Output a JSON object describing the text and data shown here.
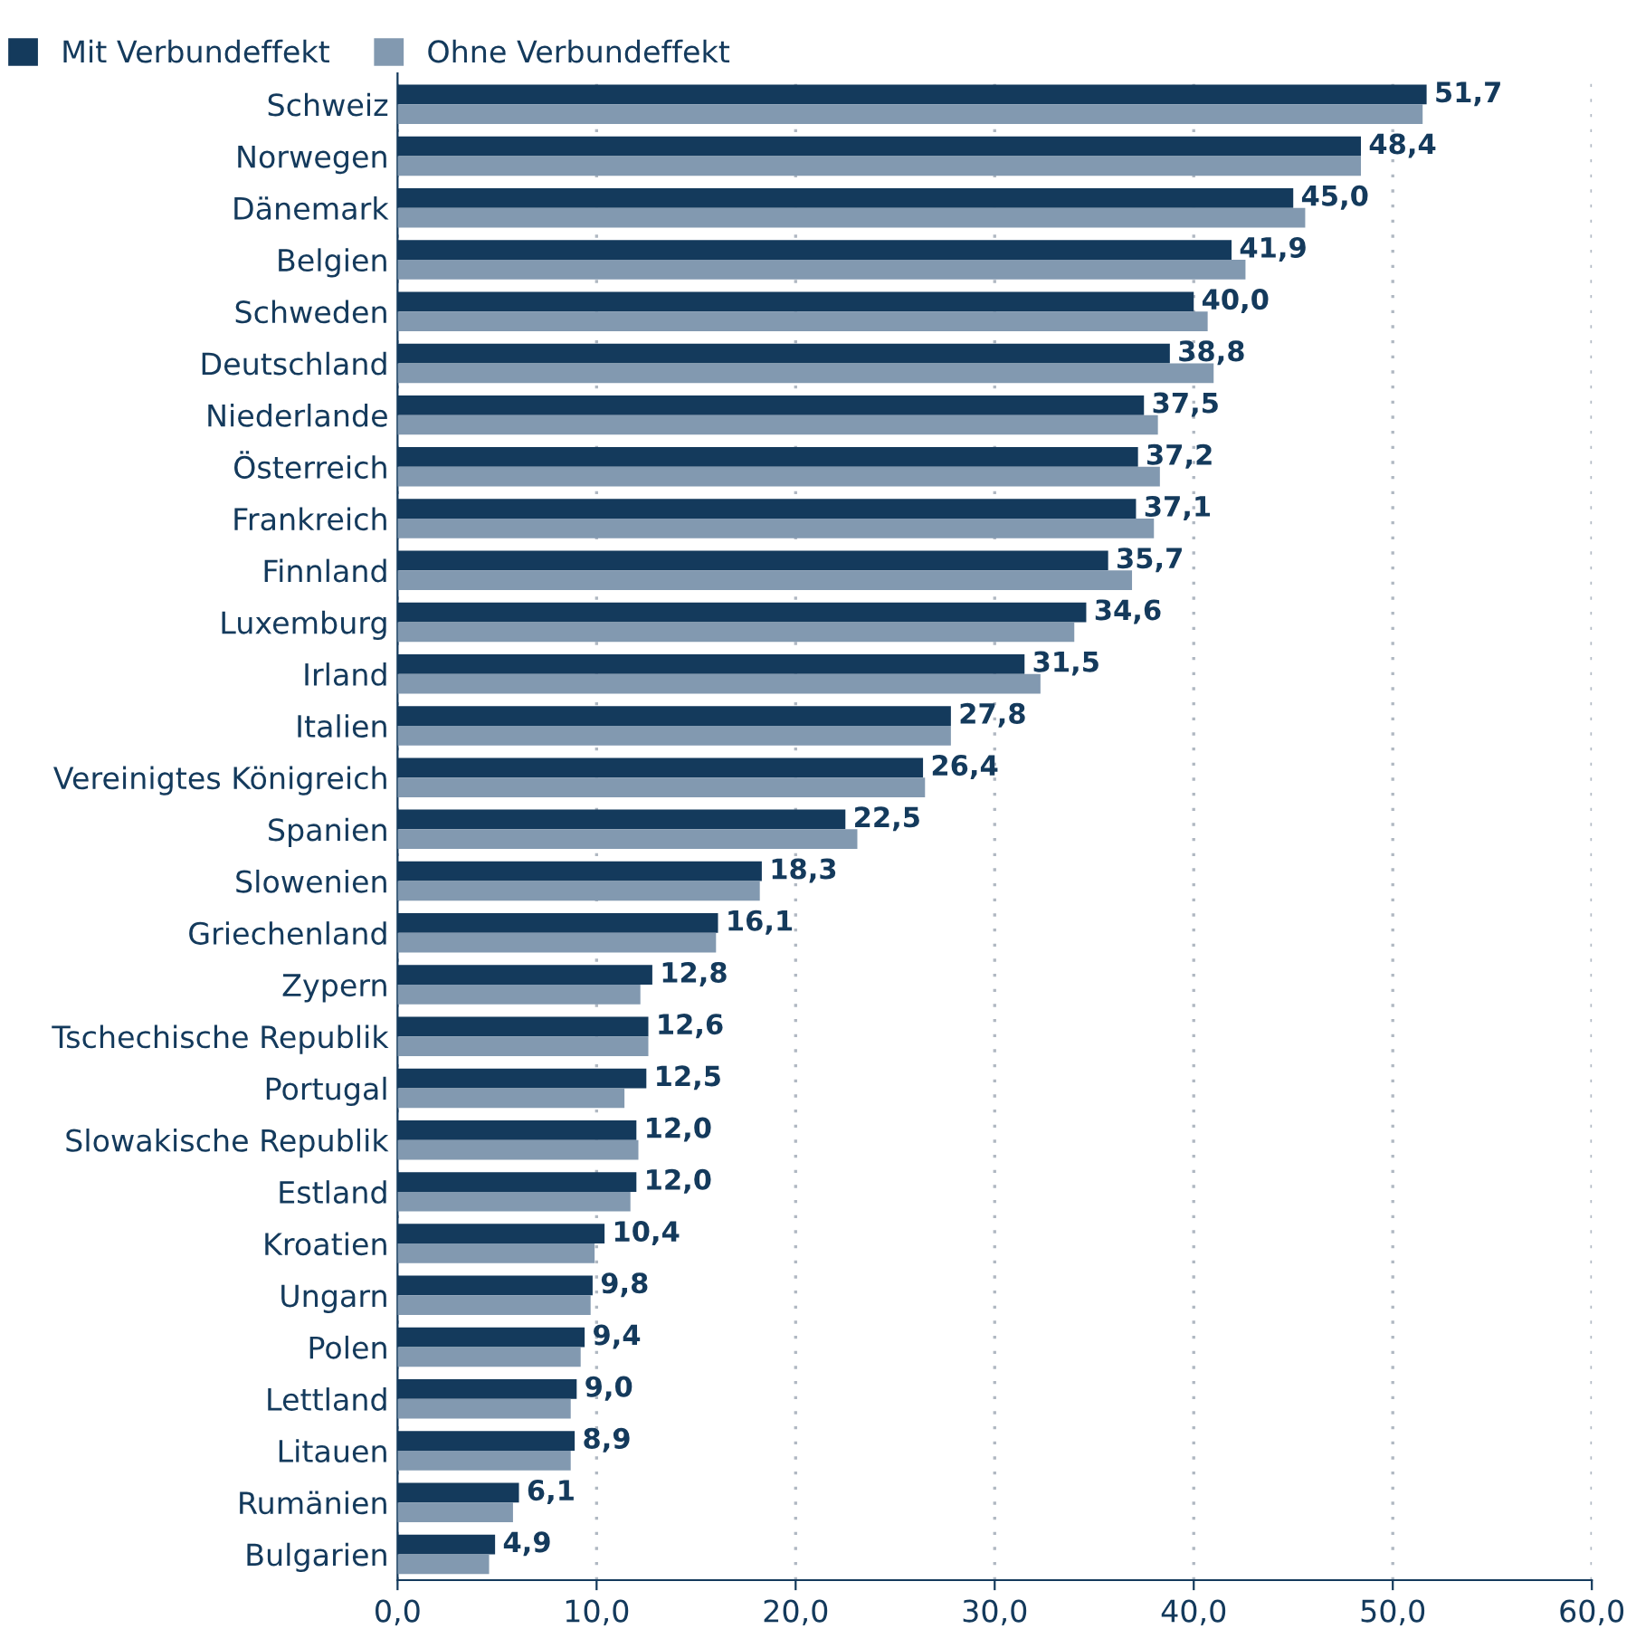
{
  "chart_data": {
    "type": "bar",
    "orientation": "horizontal",
    "categories": [
      "Schweiz",
      "Norwegen",
      "Dänemark",
      "Belgien",
      "Schweden",
      "Deutschland",
      "Niederlande",
      "Österreich",
      "Frankreich",
      "Finnland",
      "Luxemburg",
      "Irland",
      "Italien",
      "Vereinigtes Königreich",
      "Spanien",
      "Slowenien",
      "Griechenland",
      "Zypern",
      "Tschechische Republik",
      "Portugal",
      "Slowakische Republik",
      "Estland",
      "Kroatien",
      "Ungarn",
      "Polen",
      "Lettland",
      "Litauen",
      "Rumänien",
      "Bulgarien"
    ],
    "series": [
      {
        "name": "Mit Verbundeffekt",
        "color": "#143a5c",
        "values": [
          51.7,
          48.4,
          45.0,
          41.9,
          40.0,
          38.8,
          37.5,
          37.2,
          37.1,
          35.7,
          34.6,
          31.5,
          27.8,
          26.4,
          22.5,
          18.3,
          16.1,
          12.8,
          12.6,
          12.5,
          12.0,
          12.0,
          10.4,
          9.8,
          9.4,
          9.0,
          8.9,
          6.1,
          4.9
        ],
        "value_labels": [
          "51,7",
          "48,4",
          "45,0",
          "41,9",
          "40,0",
          "38,8",
          "37,5",
          "37,2",
          "37,1",
          "35,7",
          "34,6",
          "31,5",
          "27,8",
          "26,4",
          "22,5",
          "18,3",
          "16,1",
          "12,8",
          "12,6",
          "12,5",
          "12,0",
          "12,0",
          "10,4",
          "9,8",
          "9,4",
          "9,0",
          "8,9",
          "6,1",
          "4,9"
        ]
      },
      {
        "name": "Ohne Verbundeffekt",
        "color": "#8299b0",
        "values": [
          51.5,
          48.4,
          45.6,
          42.6,
          40.7,
          41.0,
          38.2,
          38.3,
          38.0,
          36.9,
          34.0,
          32.3,
          27.8,
          26.5,
          23.1,
          18.2,
          16.0,
          12.2,
          12.6,
          11.4,
          12.1,
          11.7,
          9.9,
          9.7,
          9.2,
          8.7,
          8.7,
          5.8,
          4.6
        ]
      }
    ],
    "xlim": [
      0,
      60
    ],
    "xticks": [
      {
        "value": 0,
        "label": "0,0"
      },
      {
        "value": 10,
        "label": "10,0"
      },
      {
        "value": 20,
        "label": "20,0"
      },
      {
        "value": 30,
        "label": "30,0"
      },
      {
        "value": 40,
        "label": "40,0"
      },
      {
        "value": 50,
        "label": "50,0"
      },
      {
        "value": 60,
        "label": "60,0"
      }
    ],
    "grid": "x",
    "legend": "top left"
  }
}
